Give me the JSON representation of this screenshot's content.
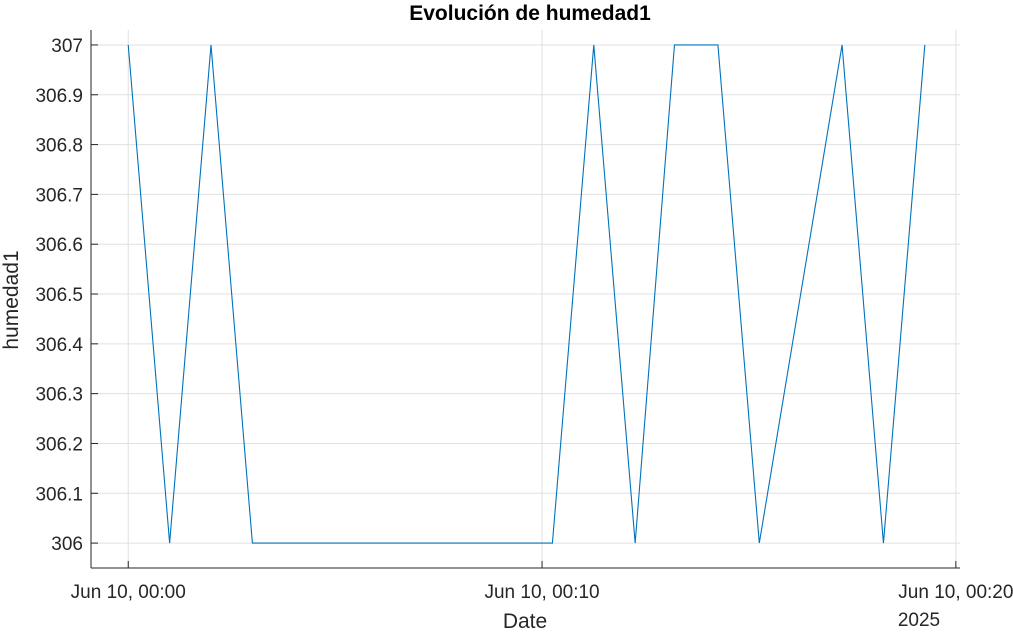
{
  "chart_data": {
    "type": "line",
    "title": "Evolución de humedad1",
    "xlabel": "Date",
    "ylabel": "humedad1",
    "x_secondary_label": "2025",
    "grid": true,
    "ylim": [
      305.95,
      307.03
    ],
    "xlim_minutes": [
      -0.9,
      20.1
    ],
    "yticks": [
      {
        "value": 306,
        "label": "306"
      },
      {
        "value": 306.1,
        "label": "306.1"
      },
      {
        "value": 306.2,
        "label": "306.2"
      },
      {
        "value": 306.3,
        "label": "306.3"
      },
      {
        "value": 306.4,
        "label": "306.4"
      },
      {
        "value": 306.5,
        "label": "306.5"
      },
      {
        "value": 306.6,
        "label": "306.6"
      },
      {
        "value": 306.7,
        "label": "306.7"
      },
      {
        "value": 306.8,
        "label": "306.8"
      },
      {
        "value": 306.9,
        "label": "306.9"
      },
      {
        "value": 307,
        "label": "307"
      }
    ],
    "xticks": [
      {
        "value": 0,
        "label": "Jun 10, 00:00"
      },
      {
        "value": 10,
        "label": "Jun 10, 00:10"
      },
      {
        "value": 20,
        "label": "Jun 10, 00:20"
      }
    ],
    "series": [
      {
        "color": "#0072BD",
        "x": [
          0.0,
          1.0,
          2.0,
          3.0,
          10.25,
          11.25,
          12.25,
          13.2,
          14.25,
          15.25,
          17.25,
          18.25,
          19.25
        ],
        "y": [
          307,
          306,
          307,
          306,
          306,
          307,
          306,
          307,
          307,
          306,
          307,
          306,
          307
        ]
      }
    ]
  }
}
